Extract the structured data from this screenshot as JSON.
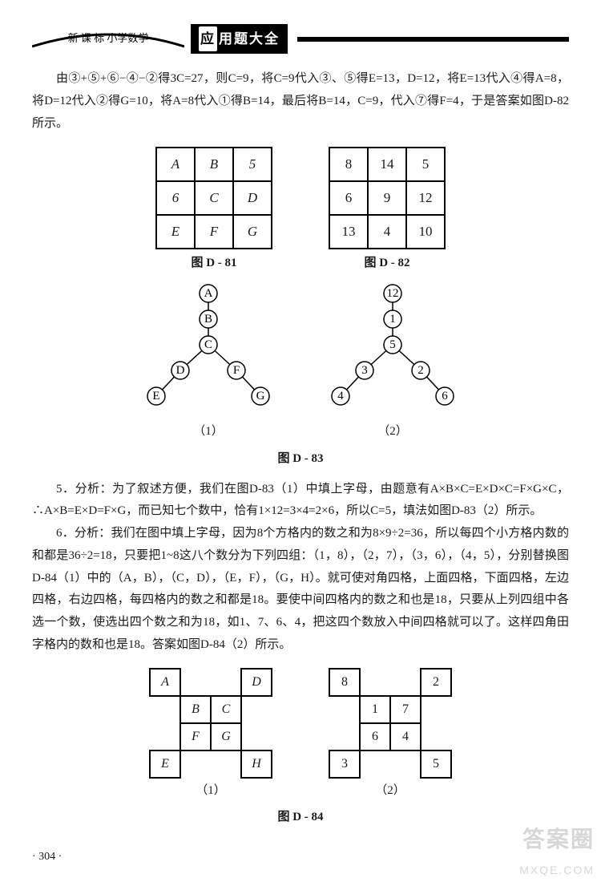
{
  "header": {
    "arc_text": "新 课 标  小学数学",
    "box_lead_char": "应",
    "box_text": "用题大全"
  },
  "para1": "由③+⑤+⑥−④−②得3C=27，则C=9，将C=9代入③、⑤得E=13，D=12，将E=13代入④得A=8，将D=12代入②得G=10，将A=8代入①得B=14，最后将B=14，C=9，代入⑦得F=4，于是答案如图D-82所示。",
  "grid81": {
    "cells": [
      [
        "A",
        "B",
        "5"
      ],
      [
        "6",
        "C",
        "D"
      ],
      [
        "E",
        "F",
        "G"
      ]
    ],
    "caption": "图 D - 81"
  },
  "grid82": {
    "cells": [
      [
        "8",
        "14",
        "5"
      ],
      [
        "6",
        "9",
        "12"
      ],
      [
        "13",
        "4",
        "10"
      ]
    ],
    "caption": "图 D - 82"
  },
  "tree1": {
    "nodes": [
      "A",
      "B",
      "C",
      "D",
      "F",
      "E",
      "G"
    ],
    "sub": "（1）"
  },
  "tree2": {
    "nodes": [
      "12",
      "1",
      "5",
      "3",
      "2",
      "4",
      "6"
    ],
    "sub": "（2）"
  },
  "caption_d83": "图 D - 83",
  "para5": "5．分析：为了叙述方便，我们在图D-83（1）中填上字母，由题意有A×B×C=E×D×C=F×G×C，∴A×B=E×D=F×G，而已知七个数中，恰有1×12=3×4=2×6，所以C=5，填法如图D-83（2）所示。",
  "para6": "6．分析：我们在图中填上字母，因为8个方格内的数之和为8×9÷2=36，所以每四个小方格内数的和都是36÷2=18，只要把1~8这八个数分为下列四组：（1，8），（2，7），（3，6），（4，5），分别替换图D-84（1）中的（A，B），（C，D），（E，F），（G，H）。就可使对角四格，上面四格，下面四格，左边四格，右边四格，每四格内的数之和都是18。要使中间四格内的数之和也是18，只要从上列四组中各选一个数，使选出四个数之和为18，如1、7、6、4，把这四个数放入中间四格就可以了。这样四角田字格内的数和也是18。答案如图D-84（2）所示。",
  "cross1": {
    "sub": "（1）",
    "A": "A",
    "B": "B",
    "C": "C",
    "D": "D",
    "E": "E",
    "F": "F",
    "G": "G",
    "H": "H"
  },
  "cross2": {
    "sub": "（2）",
    "A": "8",
    "B": "1",
    "C": "7",
    "D": "2",
    "E": "3",
    "F": "6",
    "G": "4",
    "H": "5"
  },
  "caption_d84": "图 D - 84",
  "page": "· 304 ·",
  "watermark": {
    "line1": "答案圈",
    "line2": "MXQE.COM"
  },
  "style": {
    "node_r": 11,
    "node_stroke": "#000",
    "node_fill": "#fff",
    "edge_stroke": "#000",
    "font": "italic 13px 'Times New Roman', serif",
    "font_num": "13px 'Times New Roman', serif"
  }
}
